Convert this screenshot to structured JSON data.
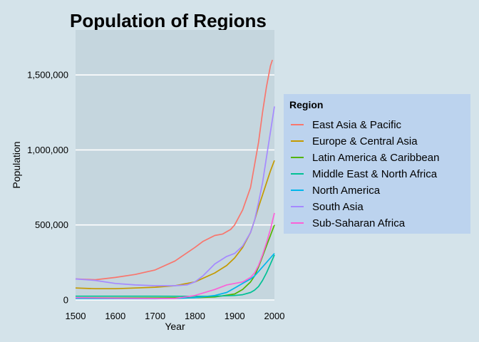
{
  "chart_data": {
    "type": "line",
    "title": "Population of Regions",
    "xlabel": "Year",
    "ylabel": "Population",
    "xlim": [
      1500,
      2000
    ],
    "ylim": [
      0,
      1800000
    ],
    "xticks": [
      1500,
      1600,
      1700,
      1800,
      1900,
      2000
    ],
    "yticks": [
      0,
      500000,
      1000000,
      1500000
    ],
    "ytick_labels": [
      "0",
      "500,000",
      "1,000,000",
      "1,500,000"
    ],
    "grid": true,
    "legend": {
      "title": "Region",
      "placement": "right"
    },
    "colors": {
      "background": "#d4e3ea",
      "panel": "#c5d6de",
      "legend_box": "#bcd3ee",
      "grid": "#ffffff"
    },
    "series": [
      {
        "name": "East Asia & Pacific",
        "color": "#f8766d",
        "points": [
          [
            1500,
            140000
          ],
          [
            1550,
            135000
          ],
          [
            1600,
            150000
          ],
          [
            1650,
            170000
          ],
          [
            1700,
            200000
          ],
          [
            1750,
            260000
          ],
          [
            1800,
            350000
          ],
          [
            1820,
            390000
          ],
          [
            1850,
            430000
          ],
          [
            1870,
            440000
          ],
          [
            1890,
            470000
          ],
          [
            1900,
            500000
          ],
          [
            1920,
            600000
          ],
          [
            1940,
            750000
          ],
          [
            1950,
            900000
          ],
          [
            1960,
            1050000
          ],
          [
            1970,
            1250000
          ],
          [
            1980,
            1420000
          ],
          [
            1990,
            1560000
          ],
          [
            1995,
            1600000
          ]
        ]
      },
      {
        "name": "Europe & Central Asia",
        "color": "#c49a00",
        "points": [
          [
            1500,
            80000
          ],
          [
            1550,
            75000
          ],
          [
            1600,
            75000
          ],
          [
            1650,
            80000
          ],
          [
            1700,
            85000
          ],
          [
            1750,
            95000
          ],
          [
            1800,
            120000
          ],
          [
            1850,
            180000
          ],
          [
            1880,
            230000
          ],
          [
            1900,
            280000
          ],
          [
            1920,
            350000
          ],
          [
            1940,
            450000
          ],
          [
            1950,
            530000
          ],
          [
            1960,
            620000
          ],
          [
            1970,
            700000
          ],
          [
            1980,
            780000
          ],
          [
            1990,
            860000
          ],
          [
            2000,
            930000
          ]
        ]
      },
      {
        "name": "Latin America & Caribbean",
        "color": "#53b400",
        "points": [
          [
            1500,
            15000
          ],
          [
            1600,
            14000
          ],
          [
            1700,
            14000
          ],
          [
            1800,
            15000
          ],
          [
            1850,
            20000
          ],
          [
            1900,
            40000
          ],
          [
            1920,
            70000
          ],
          [
            1940,
            120000
          ],
          [
            1950,
            160000
          ],
          [
            1960,
            220000
          ],
          [
            1970,
            290000
          ],
          [
            1980,
            360000
          ],
          [
            1990,
            430000
          ],
          [
            2000,
            500000
          ]
        ]
      },
      {
        "name": "Middle East & North Africa",
        "color": "#00c094",
        "points": [
          [
            1500,
            25000
          ],
          [
            1600,
            25000
          ],
          [
            1700,
            25000
          ],
          [
            1800,
            24000
          ],
          [
            1850,
            25000
          ],
          [
            1900,
            30000
          ],
          [
            1920,
            35000
          ],
          [
            1940,
            50000
          ],
          [
            1950,
            65000
          ],
          [
            1960,
            90000
          ],
          [
            1970,
            130000
          ],
          [
            1980,
            180000
          ],
          [
            1990,
            240000
          ],
          [
            2000,
            300000
          ]
        ]
      },
      {
        "name": "North America",
        "color": "#00b6eb",
        "points": [
          [
            1500,
            10000
          ],
          [
            1600,
            9000
          ],
          [
            1700,
            8000
          ],
          [
            1750,
            10000
          ],
          [
            1800,
            15000
          ],
          [
            1850,
            30000
          ],
          [
            1880,
            50000
          ],
          [
            1900,
            80000
          ],
          [
            1920,
            110000
          ],
          [
            1940,
            140000
          ],
          [
            1950,
            160000
          ],
          [
            1960,
            190000
          ],
          [
            1970,
            220000
          ],
          [
            1980,
            250000
          ],
          [
            1990,
            280000
          ],
          [
            2000,
            310000
          ]
        ]
      },
      {
        "name": "South Asia",
        "color": "#a58aff",
        "points": [
          [
            1500,
            140000
          ],
          [
            1550,
            130000
          ],
          [
            1600,
            110000
          ],
          [
            1650,
            100000
          ],
          [
            1700,
            95000
          ],
          [
            1750,
            95000
          ],
          [
            1780,
            100000
          ],
          [
            1800,
            120000
          ],
          [
            1820,
            160000
          ],
          [
            1850,
            240000
          ],
          [
            1880,
            290000
          ],
          [
            1900,
            310000
          ],
          [
            1920,
            360000
          ],
          [
            1940,
            450000
          ],
          [
            1950,
            530000
          ],
          [
            1960,
            650000
          ],
          [
            1970,
            780000
          ],
          [
            1980,
            950000
          ],
          [
            1990,
            1120000
          ],
          [
            2000,
            1290000
          ]
        ]
      },
      {
        "name": "Sub-Saharan Africa",
        "color": "#fb61d7",
        "points": [
          [
            1500,
            15000
          ],
          [
            1600,
            12000
          ],
          [
            1700,
            10000
          ],
          [
            1750,
            10000
          ],
          [
            1800,
            30000
          ],
          [
            1850,
            70000
          ],
          [
            1880,
            100000
          ],
          [
            1900,
            110000
          ],
          [
            1920,
            120000
          ],
          [
            1940,
            150000
          ],
          [
            1950,
            180000
          ],
          [
            1960,
            230000
          ],
          [
            1970,
            300000
          ],
          [
            1980,
            380000
          ],
          [
            1990,
            470000
          ],
          [
            2000,
            580000
          ]
        ]
      }
    ]
  }
}
